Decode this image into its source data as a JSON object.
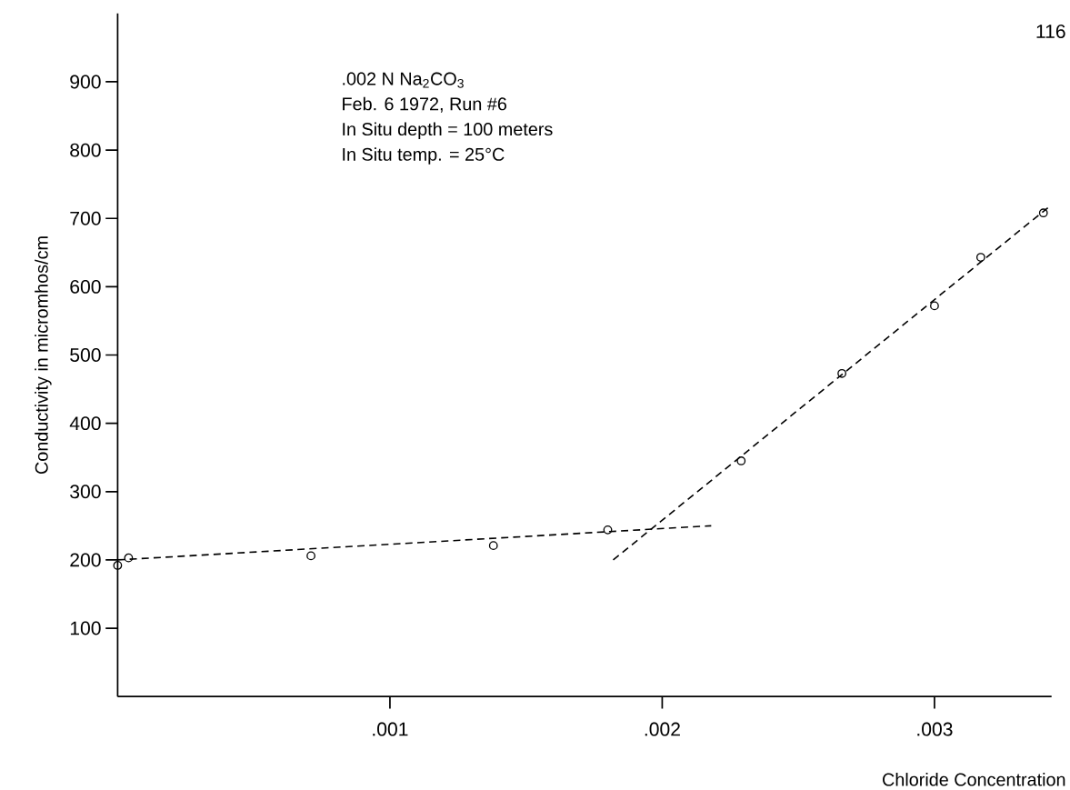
{
  "chart_data": {
    "type": "scatter",
    "xlabel": "Chloride Concentration",
    "ylabel": "Conductivity in micromhos/cm",
    "annotations": [
      "116",
      ".002 N Na$_{2}$CO$_{3}$",
      "Feb. 6 1972, Run #6",
      "In Situ depth = 100 meters",
      "In Situ temp. = 25°C"
    ],
    "series": [
      {
        "color": "#000000",
        "marker": "circle",
        "x": [
          0.0,
          4e-05,
          0.00071,
          0.00138,
          0.0018,
          0.00229,
          0.00266,
          0.003,
          0.00317,
          0.0034
        ],
        "values": [
          192,
          203,
          206,
          221,
          244,
          345,
          473,
          572,
          643,
          708
        ]
      },
      {
        "type": "line",
        "color": "#000000",
        "marker": "none",
        "line_style": "dashed",
        "x": [
          0.0,
          0.00218
        ],
        "values": [
          200,
          250
        ]
      },
      {
        "type": "line",
        "color": "#000000",
        "marker": "none",
        "line_style": "dashed",
        "x": [
          0.00182,
          0.00343
        ],
        "values": [
          200,
          720
        ]
      }
    ],
    "xlim": [
      0,
      0.00343
    ],
    "ylim": [
      0,
      1000
    ],
    "xticks": [
      {
        "value": 0.001,
        "label": ".001"
      },
      {
        "value": 0.002,
        "label": ".002"
      },
      {
        "value": 0.003,
        "label": ".003"
      }
    ],
    "yticks": [
      100,
      200,
      300,
      400,
      500,
      600,
      700,
      800,
      900
    ],
    "grid": false
  }
}
